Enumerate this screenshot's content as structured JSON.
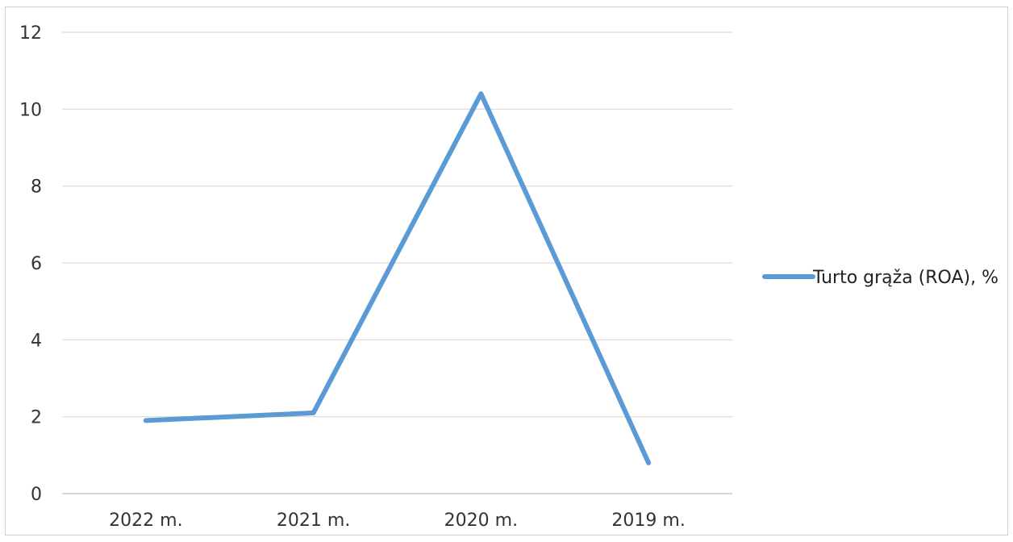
{
  "chart_data": {
    "type": "line",
    "categories": [
      "2022 m.",
      "2021 m.",
      "2020 m.",
      "2019 m."
    ],
    "series": [
      {
        "name": "Turto grąža (ROA), %",
        "values": [
          1.9,
          2.1,
          10.4,
          0.8
        ],
        "color": "#5b9bd5"
      }
    ],
    "ylim": [
      0,
      12
    ],
    "yticks": [
      0,
      2,
      4,
      6,
      8,
      10,
      12
    ],
    "grid": true,
    "legend_position": "right"
  }
}
